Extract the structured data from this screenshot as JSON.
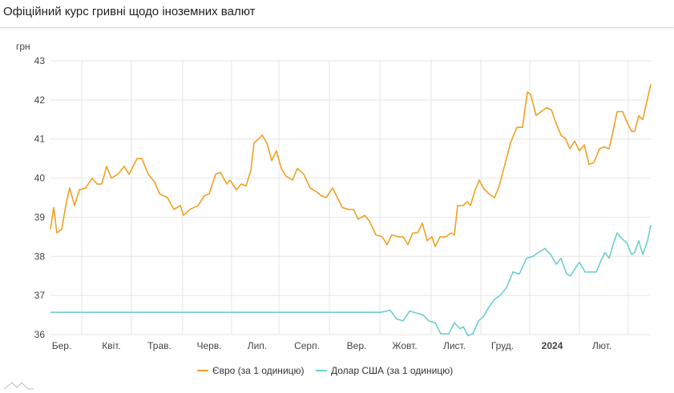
{
  "title": "Офіційний курс гривні щодо іноземних валют",
  "chart_data": {
    "type": "line",
    "title": "Офіційний курс гривні щодо іноземних валют",
    "ylabel": "грн",
    "xlabel": "",
    "x_units": "days since 1 Mar 2023",
    "xlim": [
      0,
      374.5
    ],
    "ylim": [
      36,
      43
    ],
    "yticks": [
      36,
      37,
      38,
      39,
      40,
      41,
      42,
      43
    ],
    "grid": true,
    "legend_position": "bottom",
    "xtick_labels": [
      {
        "day": 3,
        "label": "Бер.",
        "bold": false
      },
      {
        "day": 34,
        "label": "Квіт.",
        "bold": false
      },
      {
        "day": 64,
        "label": "Трав.",
        "bold": false
      },
      {
        "day": 95,
        "label": "Черв.",
        "bold": false
      },
      {
        "day": 125,
        "label": "Лип.",
        "bold": false
      },
      {
        "day": 156,
        "label": "Серп.",
        "bold": false
      },
      {
        "day": 187,
        "label": "Вер.",
        "bold": false
      },
      {
        "day": 217,
        "label": "Жовт.",
        "bold": false
      },
      {
        "day": 248,
        "label": "Лист.",
        "bold": false
      },
      {
        "day": 278,
        "label": "Груд.",
        "bold": false
      },
      {
        "day": 309,
        "label": "2024",
        "bold": true
      },
      {
        "day": 340,
        "label": "Лют.",
        "bold": false
      }
    ],
    "gridline_days": [
      19.5,
      50.5,
      82.5,
      113,
      142.5,
      174,
      205.5,
      237.5,
      268.5,
      299,
      330,
      360.5
    ],
    "series": [
      {
        "name": "Євро (за 1 одиницю)",
        "color": "#f0a020",
        "points": [
          [
            0,
            38.7
          ],
          [
            2,
            39.25
          ],
          [
            4,
            38.6
          ],
          [
            7,
            38.7
          ],
          [
            10,
            39.4
          ],
          [
            12,
            39.75
          ],
          [
            15,
            39.3
          ],
          [
            18,
            39.7
          ],
          [
            22,
            39.75
          ],
          [
            26,
            40.0
          ],
          [
            29,
            39.85
          ],
          [
            32,
            39.85
          ],
          [
            35,
            40.3
          ],
          [
            38,
            40.0
          ],
          [
            42,
            40.1
          ],
          [
            46,
            40.3
          ],
          [
            49,
            40.1
          ],
          [
            54,
            40.5
          ],
          [
            57,
            40.5
          ],
          [
            61,
            40.1
          ],
          [
            65,
            39.9
          ],
          [
            68,
            39.6
          ],
          [
            73,
            39.5
          ],
          [
            77,
            39.2
          ],
          [
            81,
            39.3
          ],
          [
            83,
            39.05
          ],
          [
            87,
            39.2
          ],
          [
            92,
            39.3
          ],
          [
            96,
            39.55
          ],
          [
            99,
            39.6
          ],
          [
            103,
            40.1
          ],
          [
            106,
            40.15
          ],
          [
            110,
            39.85
          ],
          [
            112,
            39.95
          ],
          [
            116,
            39.7
          ],
          [
            119,
            39.85
          ],
          [
            122,
            39.8
          ],
          [
            125,
            40.2
          ],
          [
            127,
            40.9
          ],
          [
            131,
            41.05
          ],
          [
            132,
            41.1
          ],
          [
            135,
            40.9
          ],
          [
            138,
            40.45
          ],
          [
            141,
            40.7
          ],
          [
            144,
            40.25
          ],
          [
            147,
            40.05
          ],
          [
            151,
            39.95
          ],
          [
            154,
            40.25
          ],
          [
            158,
            40.1
          ],
          [
            162,
            39.75
          ],
          [
            166,
            39.65
          ],
          [
            169,
            39.55
          ],
          [
            172,
            39.5
          ],
          [
            176,
            39.75
          ],
          [
            179,
            39.5
          ],
          [
            182,
            39.25
          ],
          [
            186,
            39.2
          ],
          [
            189,
            39.2
          ],
          [
            192,
            38.95
          ],
          [
            196,
            39.05
          ],
          [
            199,
            38.9
          ],
          [
            203,
            38.55
          ],
          [
            207,
            38.5
          ],
          [
            210,
            38.3
          ],
          [
            213,
            38.55
          ],
          [
            217,
            38.5
          ],
          [
            220,
            38.5
          ],
          [
            223,
            38.3
          ],
          [
            226,
            38.6
          ],
          [
            229,
            38.6
          ],
          [
            232,
            38.85
          ],
          [
            235,
            38.4
          ],
          [
            238,
            38.5
          ],
          [
            240,
            38.25
          ],
          [
            243,
            38.5
          ],
          [
            246.5,
            38.5
          ],
          [
            250,
            38.6
          ],
          [
            252,
            38.55
          ],
          [
            254,
            39.3
          ],
          [
            257.5,
            39.3
          ],
          [
            260,
            39.4
          ],
          [
            262,
            39.3
          ],
          [
            265,
            39.7
          ],
          [
            267.5,
            39.95
          ],
          [
            270,
            39.75
          ],
          [
            273.5,
            39.6
          ],
          [
            277,
            39.5
          ],
          [
            280,
            39.8
          ],
          [
            283.5,
            40.35
          ],
          [
            287,
            40.9
          ],
          [
            291,
            41.3
          ],
          [
            294.5,
            41.3
          ],
          [
            297.5,
            42.2
          ],
          [
            299.5,
            42.15
          ],
          [
            303,
            41.6
          ],
          [
            306,
            41.7
          ],
          [
            309.5,
            41.8
          ],
          [
            312.5,
            41.75
          ],
          [
            315,
            41.45
          ],
          [
            318.5,
            41.1
          ],
          [
            321.5,
            41.0
          ],
          [
            324,
            40.75
          ],
          [
            327,
            40.95
          ],
          [
            330,
            40.7
          ],
          [
            333,
            40.85
          ],
          [
            336,
            40.35
          ],
          [
            339,
            40.4
          ],
          [
            342.5,
            40.75
          ],
          [
            345.5,
            40.8
          ],
          [
            348.5,
            40.75
          ],
          [
            351,
            41.2
          ],
          [
            353.5,
            41.7
          ],
          [
            357,
            41.7
          ],
          [
            360,
            41.4
          ],
          [
            362.5,
            41.2
          ],
          [
            364.5,
            41.2
          ],
          [
            367,
            41.6
          ],
          [
            369.5,
            41.5
          ],
          [
            372,
            41.95
          ],
          [
            374.5,
            42.4
          ]
        ]
      },
      {
        "name": "Долар США (за 1 одиницю)",
        "color": "#6ccfcc",
        "points": [
          [
            0,
            36.57
          ],
          [
            206,
            36.57
          ],
          [
            212,
            36.62
          ],
          [
            216,
            36.4
          ],
          [
            220,
            36.35
          ],
          [
            224,
            36.6
          ],
          [
            228.5,
            36.55
          ],
          [
            232.5,
            36.5
          ],
          [
            236,
            36.35
          ],
          [
            240,
            36.3
          ],
          [
            243.5,
            36.02
          ],
          [
            248.5,
            36.02
          ],
          [
            252,
            36.3
          ],
          [
            255.5,
            36.15
          ],
          [
            257.5,
            36.2
          ],
          [
            260.5,
            35.97
          ],
          [
            263.5,
            36.02
          ],
          [
            267,
            36.35
          ],
          [
            270,
            36.45
          ],
          [
            273.5,
            36.7
          ],
          [
            277,
            36.9
          ],
          [
            280.5,
            37.0
          ],
          [
            284.5,
            37.2
          ],
          [
            288.5,
            37.6
          ],
          [
            292.5,
            37.55
          ],
          [
            297,
            37.95
          ],
          [
            301,
            38.0
          ],
          [
            304.5,
            38.1
          ],
          [
            308.5,
            38.2
          ],
          [
            312,
            38.05
          ],
          [
            315.5,
            37.8
          ],
          [
            318.5,
            37.95
          ],
          [
            322,
            37.55
          ],
          [
            324.5,
            37.5
          ],
          [
            327.5,
            37.7
          ],
          [
            330,
            37.85
          ],
          [
            333.5,
            37.6
          ],
          [
            337,
            37.6
          ],
          [
            340.5,
            37.6
          ],
          [
            343.5,
            37.9
          ],
          [
            346,
            38.1
          ],
          [
            348.5,
            37.95
          ],
          [
            351,
            38.3
          ],
          [
            353.5,
            38.6
          ],
          [
            356.5,
            38.45
          ],
          [
            359.5,
            38.35
          ],
          [
            362.5,
            38.05
          ],
          [
            364.5,
            38.1
          ],
          [
            367,
            38.4
          ],
          [
            369.5,
            38.05
          ],
          [
            372.5,
            38.4
          ],
          [
            374.5,
            38.8
          ]
        ]
      }
    ]
  }
}
